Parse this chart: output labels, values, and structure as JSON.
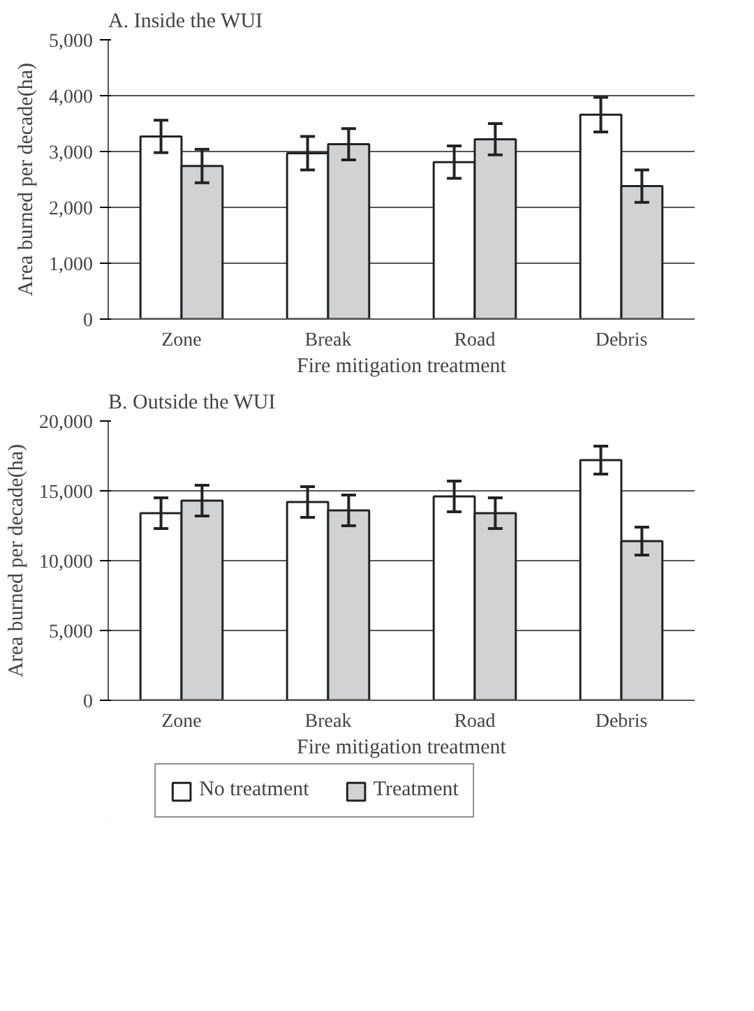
{
  "chart_data": [
    {
      "type": "bar",
      "title": "A. Inside the WUI",
      "xlabel": "Fire mitigation treatment",
      "ylabel": "Area burned per decade(ha)",
      "categories": [
        "Zone",
        "Break",
        "Road",
        "Debris"
      ],
      "series": [
        {
          "color": "#ffffff",
          "values": [
            3270,
            2970,
            2810,
            3660
          ],
          "errors": [
            290,
            300,
            290,
            310
          ]
        },
        {
          "color": "#d0d2d4",
          "values": [
            2740,
            3130,
            3220,
            2380
          ],
          "errors": [
            300,
            280,
            280,
            290
          ]
        }
      ],
      "ylim": [
        0,
        5000
      ],
      "yticks": [
        {
          "value": 0,
          "label": "0"
        },
        {
          "value": 1000,
          "label": "1,000"
        },
        {
          "value": 2000,
          "label": "2,000"
        },
        {
          "value": 3000,
          "label": "3,000"
        },
        {
          "value": 4000,
          "label": "4,000"
        },
        {
          "value": 5000,
          "label": "5,000"
        }
      ],
      "grid": "y"
    },
    {
      "type": "bar",
      "title": "B. Outside the WUI",
      "xlabel": "Fire mitigation treatment",
      "ylabel": "Area burned per decade(ha)",
      "categories": [
        "Zone",
        "Break",
        "Road",
        "Debris"
      ],
      "series": [
        {
          "name": "No treatment",
          "color": "#ffffff",
          "values": [
            13400,
            14200,
            14600,
            17200
          ],
          "errors": [
            1100,
            1100,
            1100,
            1000
          ]
        },
        {
          "name": "Treatment",
          "color": "#d0d2d4",
          "values": [
            14300,
            13600,
            13400,
            11400
          ],
          "errors": [
            1100,
            1100,
            1100,
            1000
          ]
        }
      ],
      "ylim": [
        0,
        20000
      ],
      "yticks": [
        {
          "value": 0,
          "label": "0"
        },
        {
          "value": 5000,
          "label": "5,000"
        },
        {
          "value": 10000,
          "label": "10,000"
        },
        {
          "value": 15000,
          "label": "15,000"
        },
        {
          "value": 20000,
          "label": "20,000"
        }
      ],
      "grid": "y",
      "legend": "bottom"
    }
  ]
}
